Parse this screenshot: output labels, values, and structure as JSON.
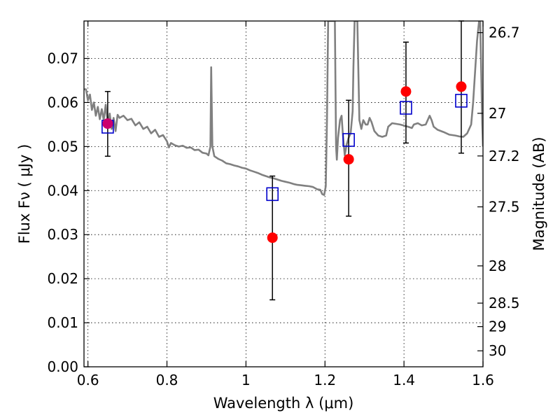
{
  "chart_data": {
    "type": "scatter",
    "title": "",
    "xlabel": "Wavelength  λ (μm)",
    "ylabel": "Flux  Fν  ( μJy )",
    "ylabel_right": "Magnitude (AB)",
    "xlim": [
      0.59,
      1.6
    ],
    "ylim": [
      0.0,
      0.0785
    ],
    "grid": true,
    "x_ticks": [
      {
        "value": 0.6,
        "label": "0.6"
      },
      {
        "value": 0.8,
        "label": "0.8"
      },
      {
        "value": 1.0,
        "label": "1"
      },
      {
        "value": 1.2,
        "label": "1.2"
      },
      {
        "value": 1.4,
        "label": "1.4"
      },
      {
        "value": 1.6,
        "label": "1.6"
      }
    ],
    "y_ticks": [
      {
        "value": 0.0,
        "label": "0.00"
      },
      {
        "value": 0.01,
        "label": "0.01"
      },
      {
        "value": 0.02,
        "label": "0.02"
      },
      {
        "value": 0.03,
        "label": "0.03"
      },
      {
        "value": 0.04,
        "label": "0.04"
      },
      {
        "value": 0.05,
        "label": "0.05"
      },
      {
        "value": 0.06,
        "label": "0.06"
      },
      {
        "value": 0.07,
        "label": "0.07"
      }
    ],
    "mag_ticks": [
      {
        "mag": 26.7,
        "label": "26.7"
      },
      {
        "mag": 27,
        "label": "27"
      },
      {
        "mag": 27.2,
        "label": "27.2"
      },
      {
        "mag": 27.5,
        "label": "27.5"
      },
      {
        "mag": 28,
        "label": "28"
      },
      {
        "mag": 28.5,
        "label": "28.5"
      },
      {
        "mag": 29,
        "label": "29"
      },
      {
        "mag": 30,
        "label": "30"
      }
    ],
    "observed": [
      {
        "x": 0.65,
        "y": 0.0552,
        "yerr_low": 0.0478,
        "yerr_high": 0.0625
      },
      {
        "x": 1.067,
        "y": 0.0293,
        "yerr_low": 0.0152,
        "yerr_high": 0.0433
      },
      {
        "x": 1.26,
        "y": 0.0471,
        "yerr_low": 0.0342,
        "yerr_high": 0.0605
      },
      {
        "x": 1.405,
        "y": 0.0625,
        "yerr_low": 0.0508,
        "yerr_high": 0.0737
      },
      {
        "x": 1.545,
        "y": 0.0636,
        "yerr_low": 0.0485,
        "yerr_high": 0.0785
      }
    ],
    "model_bands": [
      {
        "x": 0.65,
        "y": 0.0545
      },
      {
        "x": 1.067,
        "y": 0.0392
      },
      {
        "x": 1.26,
        "y": 0.0515
      },
      {
        "x": 1.405,
        "y": 0.0588
      },
      {
        "x": 1.545,
        "y": 0.0604
      }
    ],
    "spectrum": [
      [
        0.59,
        0.063
      ],
      [
        0.595,
        0.063
      ],
      [
        0.6,
        0.0605
      ],
      [
        0.605,
        0.0618
      ],
      [
        0.61,
        0.0583
      ],
      [
        0.615,
        0.06
      ],
      [
        0.62,
        0.057
      ],
      [
        0.625,
        0.059
      ],
      [
        0.63,
        0.0562
      ],
      [
        0.635,
        0.0585
      ],
      [
        0.64,
        0.056
      ],
      [
        0.645,
        0.0595
      ],
      [
        0.65,
        0.055
      ],
      [
        0.655,
        0.0575
      ],
      [
        0.66,
        0.054
      ],
      [
        0.665,
        0.0565
      ],
      [
        0.67,
        0.0535
      ],
      [
        0.675,
        0.0572
      ],
      [
        0.68,
        0.0565
      ],
      [
        0.69,
        0.057
      ],
      [
        0.7,
        0.056
      ],
      [
        0.71,
        0.0563
      ],
      [
        0.72,
        0.0548
      ],
      [
        0.73,
        0.0555
      ],
      [
        0.74,
        0.054
      ],
      [
        0.75,
        0.0545
      ],
      [
        0.76,
        0.053
      ],
      [
        0.77,
        0.0538
      ],
      [
        0.78,
        0.0522
      ],
      [
        0.79,
        0.0526
      ],
      [
        0.8,
        0.0512
      ],
      [
        0.805,
        0.0498
      ],
      [
        0.81,
        0.0508
      ],
      [
        0.82,
        0.0503
      ],
      [
        0.83,
        0.05
      ],
      [
        0.84,
        0.0502
      ],
      [
        0.85,
        0.0497
      ],
      [
        0.86,
        0.0498
      ],
      [
        0.87,
        0.0492
      ],
      [
        0.88,
        0.0493
      ],
      [
        0.89,
        0.0486
      ],
      [
        0.9,
        0.0484
      ],
      [
        0.905,
        0.048
      ],
      [
        0.91,
        0.05
      ],
      [
        0.912,
        0.068
      ],
      [
        0.915,
        0.05
      ],
      [
        0.92,
        0.0478
      ],
      [
        0.93,
        0.0472
      ],
      [
        0.94,
        0.0468
      ],
      [
        0.95,
        0.0462
      ],
      [
        0.96,
        0.046
      ],
      [
        0.97,
        0.0457
      ],
      [
        0.98,
        0.0455
      ],
      [
        0.99,
        0.0452
      ],
      [
        1.0,
        0.045
      ],
      [
        1.01,
        0.0446
      ],
      [
        1.02,
        0.0443
      ],
      [
        1.03,
        0.044
      ],
      [
        1.04,
        0.0436
      ],
      [
        1.05,
        0.0433
      ],
      [
        1.06,
        0.043
      ],
      [
        1.07,
        0.0428
      ],
      [
        1.08,
        0.0425
      ],
      [
        1.09,
        0.0422
      ],
      [
        1.1,
        0.042
      ],
      [
        1.11,
        0.0418
      ],
      [
        1.12,
        0.0415
      ],
      [
        1.13,
        0.0413
      ],
      [
        1.14,
        0.0412
      ],
      [
        1.15,
        0.0411
      ],
      [
        1.16,
        0.041
      ],
      [
        1.17,
        0.0408
      ],
      [
        1.18,
        0.0403
      ],
      [
        1.188,
        0.0402
      ],
      [
        1.193,
        0.0392
      ],
      [
        1.198,
        0.039
      ],
      [
        1.202,
        0.041
      ],
      [
        1.205,
        0.056
      ],
      [
        1.208,
        0.0785
      ],
      [
        1.225,
        0.0785
      ],
      [
        1.228,
        0.05
      ],
      [
        1.23,
        0.047
      ],
      [
        1.233,
        0.052
      ],
      [
        1.238,
        0.056
      ],
      [
        1.242,
        0.057
      ],
      [
        1.245,
        0.053
      ],
      [
        1.25,
        0.048
      ],
      [
        1.255,
        0.0505
      ],
      [
        1.26,
        0.052
      ],
      [
        1.265,
        0.053
      ],
      [
        1.27,
        0.058
      ],
      [
        1.272,
        0.068
      ],
      [
        1.275,
        0.0785
      ],
      [
        1.282,
        0.0785
      ],
      [
        1.287,
        0.056
      ],
      [
        1.292,
        0.054
      ],
      [
        1.297,
        0.056
      ],
      [
        1.303,
        0.055
      ],
      [
        1.308,
        0.055
      ],
      [
        1.313,
        0.0565
      ],
      [
        1.318,
        0.0555
      ],
      [
        1.325,
        0.0535
      ],
      [
        1.335,
        0.0525
      ],
      [
        1.345,
        0.0522
      ],
      [
        1.355,
        0.0525
      ],
      [
        1.36,
        0.0545
      ],
      [
        1.37,
        0.0553
      ],
      [
        1.39,
        0.055
      ],
      [
        1.41,
        0.0545
      ],
      [
        1.42,
        0.0542
      ],
      [
        1.425,
        0.055
      ],
      [
        1.435,
        0.0553
      ],
      [
        1.445,
        0.0548
      ],
      [
        1.455,
        0.055
      ],
      [
        1.46,
        0.056
      ],
      [
        1.465,
        0.057
      ],
      [
        1.47,
        0.056
      ],
      [
        1.475,
        0.0545
      ],
      [
        1.485,
        0.0538
      ],
      [
        1.5,
        0.0533
      ],
      [
        1.515,
        0.0527
      ],
      [
        1.53,
        0.0525
      ],
      [
        1.54,
        0.0523
      ],
      [
        1.55,
        0.0522
      ],
      [
        1.56,
        0.053
      ],
      [
        1.57,
        0.055
      ],
      [
        1.575,
        0.06
      ],
      [
        1.58,
        0.067
      ],
      [
        1.585,
        0.074
      ],
      [
        1.59,
        0.0785
      ],
      [
        1.593,
        0.0785
      ],
      [
        1.596,
        0.065
      ],
      [
        1.598,
        0.055
      ],
      [
        1.6,
        0.05
      ]
    ],
    "colors": {
      "spectrum": "#808080",
      "observed": "#ff0000",
      "model_band": "#0000cc",
      "errorbar": "#000000"
    }
  }
}
